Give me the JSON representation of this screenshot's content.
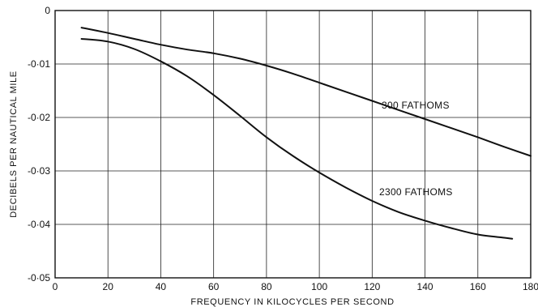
{
  "chart_data": {
    "type": "line",
    "title": "",
    "xlabel": "FREQUENCY IN KILOCYCLES PER SECOND",
    "ylabel": "DECIBELS PER NAUTICAL MILE",
    "xlim": [
      0,
      180
    ],
    "ylim": [
      -0.05,
      0
    ],
    "x_ticks": [
      "0",
      "20",
      "40",
      "60",
      "80",
      "100",
      "120",
      "140",
      "160",
      "180"
    ],
    "y_ticks": [
      "0",
      "-0·01",
      "-0·02",
      "-0·03",
      "-0·04",
      "-0·05"
    ],
    "grid": true,
    "series": [
      {
        "name": "300 FATHOMS",
        "x": [
          10,
          20,
          30,
          40,
          50,
          60,
          70,
          80,
          90,
          100,
          110,
          120,
          130,
          140,
          150,
          160,
          170,
          180
        ],
        "y": [
          -0.0032,
          -0.0042,
          -0.0053,
          -0.0064,
          -0.0073,
          -0.008,
          -0.009,
          -0.0103,
          -0.0118,
          -0.0135,
          -0.0152,
          -0.0169,
          -0.0186,
          -0.0203,
          -0.022,
          -0.0237,
          -0.0255,
          -0.0272
        ]
      },
      {
        "name": "2300 FATHOMS",
        "x": [
          10,
          20,
          30,
          40,
          50,
          60,
          70,
          80,
          90,
          100,
          110,
          120,
          130,
          140,
          150,
          160,
          170,
          173
        ],
        "y": [
          -0.0053,
          -0.0058,
          -0.0072,
          -0.0095,
          -0.0123,
          -0.0158,
          -0.0197,
          -0.0237,
          -0.0272,
          -0.0303,
          -0.0331,
          -0.0356,
          -0.0377,
          -0.0393,
          -0.0407,
          -0.0419,
          -0.0425,
          -0.0427
        ]
      }
    ]
  }
}
